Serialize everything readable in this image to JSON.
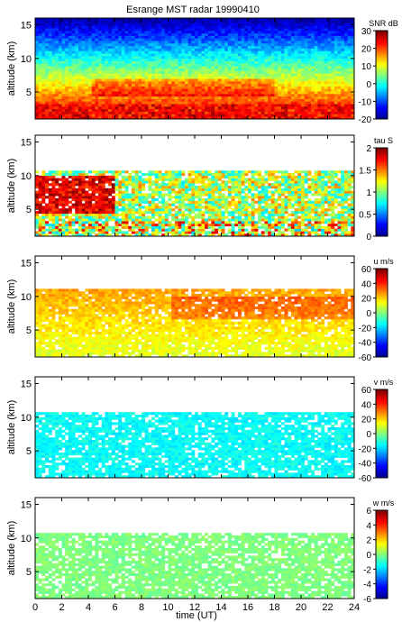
{
  "title": "Esrange MST radar 19990410",
  "xlabel": "time (UT)",
  "chart_data": [
    {
      "type": "heatmap",
      "quantity": "SNR",
      "colorbar_label": "SNR dB",
      "ylabel": "altitude (km)",
      "xlim": [
        0,
        24
      ],
      "ylim": [
        1,
        16
      ],
      "clim": [
        -20,
        30
      ],
      "yticks": [
        "5",
        "10",
        "15"
      ],
      "colorbar_ticks": [
        "-20",
        "-10",
        "0",
        "10",
        "20",
        "30"
      ]
    },
    {
      "type": "heatmap",
      "quantity": "tau",
      "colorbar_label": "tau S",
      "ylabel": "altitude (km)",
      "xlim": [
        0,
        24
      ],
      "ylim": [
        1,
        16
      ],
      "clim": [
        0,
        2
      ],
      "yticks": [
        "5",
        "10",
        "15"
      ],
      "colorbar_ticks": [
        "0",
        "0.5",
        "1",
        "1.5",
        "2"
      ]
    },
    {
      "type": "heatmap",
      "quantity": "u",
      "colorbar_label": "u m/s",
      "ylabel": "altitude (km)",
      "xlim": [
        0,
        24
      ],
      "ylim": [
        1,
        16
      ],
      "clim": [
        -60,
        60
      ],
      "yticks": [
        "5",
        "10",
        "15"
      ],
      "colorbar_ticks": [
        "-60",
        "-40",
        "-20",
        "0",
        "20",
        "40",
        "60"
      ]
    },
    {
      "type": "heatmap",
      "quantity": "v",
      "colorbar_label": "v m/s",
      "ylabel": "altitude (km)",
      "xlim": [
        0,
        24
      ],
      "ylim": [
        1,
        16
      ],
      "clim": [
        -60,
        60
      ],
      "yticks": [
        "5",
        "10",
        "15"
      ],
      "colorbar_ticks": [
        "-60",
        "-40",
        "-20",
        "0",
        "20",
        "40",
        "60"
      ]
    },
    {
      "type": "heatmap",
      "quantity": "w",
      "colorbar_label": "w m/s",
      "ylabel": "altitude (km)",
      "xlim": [
        0,
        24
      ],
      "ylim": [
        1,
        16
      ],
      "clim": [
        -6,
        6
      ],
      "yticks": [
        "5",
        "10",
        "15"
      ],
      "colorbar_ticks": [
        "-6",
        "-4",
        "-2",
        "0",
        "2",
        "4",
        "6"
      ]
    }
  ],
  "xticks": [
    "0",
    "2",
    "4",
    "6",
    "8",
    "10",
    "12",
    "14",
    "16",
    "18",
    "20",
    "22",
    "24"
  ]
}
